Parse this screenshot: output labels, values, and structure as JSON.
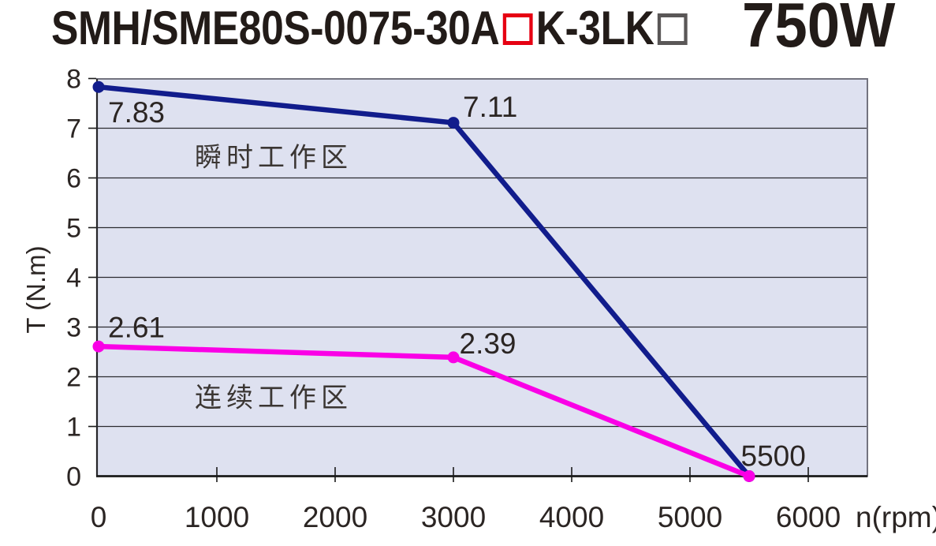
{
  "title": {
    "model_prefix": "SMH/SME80S-0075-30A",
    "model_suffix": "K-3LK",
    "power": "750W",
    "option_box1_border_color": "#e60012",
    "option_box2_border_color": "#5a5757",
    "text_color": "#221b18"
  },
  "chart_data": {
    "type": "line",
    "xlabel": "n(rpm)",
    "ylabel": "T (N.m)",
    "xlim": [
      0,
      6500
    ],
    "ylim": [
      0,
      8
    ],
    "xticks": [
      0,
      1000,
      2000,
      3000,
      4000,
      5000,
      6000
    ],
    "yticks": [
      0,
      1,
      2,
      3,
      4,
      5,
      6,
      7,
      8
    ],
    "grid": "horizontal-only",
    "legend": "none",
    "plot_bg": "#dee1f0",
    "grid_color": "#2b2b30",
    "axis_text_color": "#2b2523",
    "series": [
      {
        "name": "瞬时工作区",
        "color": "#111c8c",
        "points": [
          [
            0,
            7.83
          ],
          [
            3000,
            7.11
          ],
          [
            5500,
            0
          ]
        ]
      },
      {
        "name": "连续工作区",
        "color": "#fa00e6",
        "points": [
          [
            0,
            2.61
          ],
          [
            3000,
            2.39
          ],
          [
            5500,
            0
          ]
        ]
      }
    ],
    "point_labels": [
      {
        "text": "7.83",
        "x": 80,
        "y": 7.12
      },
      {
        "text": "7.11",
        "x": 3080,
        "y": 7.23
      },
      {
        "text": "2.61",
        "x": 80,
        "y": 2.79
      },
      {
        "text": "2.39",
        "x": 3050,
        "y": 2.47
      },
      {
        "text": "5500",
        "x": 5430,
        "y": 0.21
      }
    ],
    "region_labels": [
      {
        "text": "瞬时工作区",
        "x": 1480,
        "y": 6.23
      },
      {
        "text": "连续工作区",
        "x": 1480,
        "y": 1.4
      }
    ]
  }
}
